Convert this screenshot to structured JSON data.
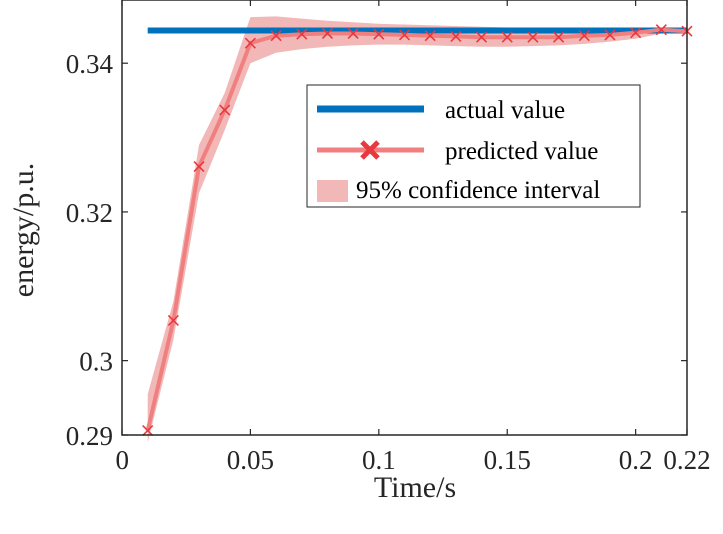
{
  "chart_data": {
    "type": "line",
    "xlabel": "Time/s",
    "ylabel": "energy/p.u.",
    "xlim": [
      0,
      0.22
    ],
    "ylim": [
      0.29,
      0.3485
    ],
    "xticks": [
      0,
      0.05,
      0.1,
      0.15,
      0.2,
      0.22
    ],
    "xtick_labels": [
      "0",
      "0.05",
      "0.1",
      "0.15",
      "0.2",
      "0.22"
    ],
    "yticks": [
      0.29,
      0.3,
      0.32,
      0.34
    ],
    "ytick_labels": [
      "0.29",
      "0.3",
      "0.32",
      "0.34"
    ],
    "grid": false,
    "legend_position": "upper-right",
    "series": [
      {
        "name": "actual value",
        "kind": "line",
        "color": "#0072BD",
        "x": [
          0.01,
          0.22
        ],
        "values": [
          0.3444,
          0.3444
        ]
      },
      {
        "name": "predicted value",
        "kind": "line-markers",
        "color": "#F08080",
        "marker": "x",
        "marker_color": "#E8393F",
        "x": [
          0.01,
          0.02,
          0.03,
          0.04,
          0.05,
          0.06,
          0.07,
          0.08,
          0.09,
          0.1,
          0.11,
          0.12,
          0.13,
          0.14,
          0.15,
          0.16,
          0.17,
          0.18,
          0.19,
          0.2,
          0.21,
          0.22
        ],
        "values": [
          0.2906,
          0.3054,
          0.3261,
          0.3337,
          0.3427,
          0.3437,
          0.3439,
          0.344,
          0.344,
          0.3439,
          0.3438,
          0.3437,
          0.3436,
          0.3435,
          0.3435,
          0.3435,
          0.3435,
          0.3437,
          0.3438,
          0.3441,
          0.3445,
          0.3443
        ]
      },
      {
        "name": "95% confidence interval",
        "kind": "band",
        "color": "#F2B8B8",
        "x": [
          0.01,
          0.02,
          0.03,
          0.04,
          0.05,
          0.06,
          0.07,
          0.08,
          0.09,
          0.1,
          0.11,
          0.12,
          0.13,
          0.14,
          0.15,
          0.16,
          0.17,
          0.18,
          0.19,
          0.2,
          0.21,
          0.22
        ],
        "upper": [
          0.2955,
          0.308,
          0.329,
          0.336,
          0.3462,
          0.3463,
          0.346,
          0.3457,
          0.3455,
          0.3453,
          0.3452,
          0.3451,
          0.345,
          0.3449,
          0.3448,
          0.3447,
          0.3446,
          0.3446,
          0.3446,
          0.3446,
          0.3447,
          0.3446
        ],
        "lower": [
          0.289,
          0.3028,
          0.3225,
          0.331,
          0.34,
          0.3414,
          0.3419,
          0.3422,
          0.3424,
          0.3425,
          0.3425,
          0.3424,
          0.3423,
          0.3422,
          0.3422,
          0.3423,
          0.3424,
          0.3426,
          0.3429,
          0.3433,
          0.344,
          0.344
        ]
      }
    ],
    "legend": [
      {
        "label": "actual value",
        "kind": "line",
        "color": "#0072BD"
      },
      {
        "label": "predicted value",
        "kind": "line-marker",
        "color": "#F08080",
        "marker_color": "#E8393F"
      },
      {
        "label": "95% confidence interval",
        "kind": "patch",
        "color": "#F2B8B8"
      }
    ]
  }
}
